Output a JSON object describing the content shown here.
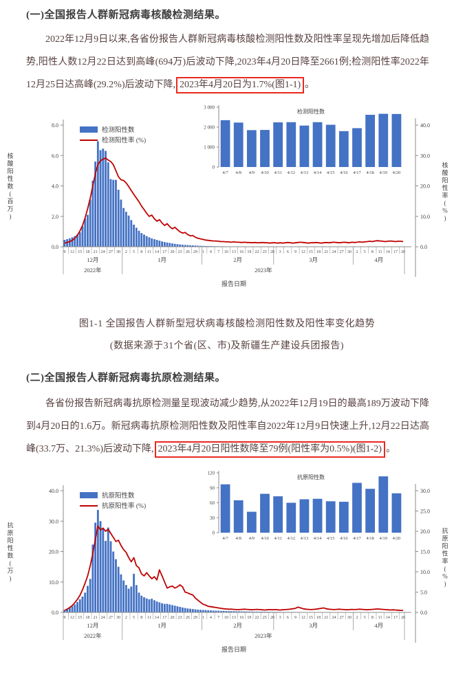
{
  "colors": {
    "bar": "#4472C4",
    "line": "#C00000",
    "axis": "#8a8a8a",
    "tick_text": "#3f3f3f",
    "highlight_border": "#e8281e"
  },
  "section1": {
    "heading": "(一)全国报告人群新冠病毒核酸检测结果。",
    "para_before": "2022年12月9日以来,各省份报告人群新冠病毒核酸检测阳性数及阳性率呈现先增加后降低趋势,阳性人数12月22日达到高峰(694万)后波动下降,2023年4月20日降至2661例;检测阳性率2022年12月25日达高峰(29.2%)后波动下降,",
    "highlight": "2023年4月20日为1.7%(图1-1)",
    "para_end": "。"
  },
  "figure1": {
    "caption": "图1-1  全国报告人群新型冠状病毒核酸检测阳性数及阳性率变化趋势",
    "source_note": "(数据来源于31个省(区、市)及新疆生产建设兵团报告)"
  },
  "section2": {
    "heading": "(二)全国报告人群新冠病毒抗原检测结果。",
    "para_before": "各省份报告新冠病毒抗原检测量呈现波动减少趋势,从2022年12月19日的最高189万波动下降到4月20日的1.6万。新冠病毒抗原检测阳性数及阳性率自2022年12月9日快速上升,12月22日达高峰(33.7万、21.3%)后波动下降,",
    "highlight": "2023年4月20日阳性数降至79例(阳性率为0.5%)(图1-2)",
    "para_end": "。"
  },
  "chart_data": [
    {
      "type": "bar+line",
      "title": "",
      "legend": [
        "检测阳性数",
        "检测阳性率 (%)"
      ],
      "ylabel_left": "核酸阳性数(百万)",
      "ylabel_right": "核酸阳性率(%)",
      "xlabel": "报告日期",
      "left_axis": {
        "max": 8,
        "labels": [
          "0.0",
          "2.0",
          "4.0",
          "6.0",
          "8.0"
        ]
      },
      "right_axis": {
        "max": 40,
        "labels": [
          "0.0",
          "10.0",
          "20.0",
          "30.0",
          "40.0"
        ]
      },
      "x_months": [
        {
          "label": "12月",
          "days": 23,
          "first_tick": 0,
          "tick_labels": [
            "9",
            "12",
            "15",
            "18",
            "21",
            "24",
            "27",
            "30"
          ]
        },
        {
          "label": "1月",
          "days": 31,
          "first_tick": 1,
          "tick_labels": [
            "2",
            "5",
            "8",
            "11",
            "14",
            "17",
            "20",
            "23",
            "26",
            "29"
          ]
        },
        {
          "label": "2月",
          "days": 28,
          "first_tick": 0,
          "tick_labels": [
            "1",
            "4",
            "7",
            "10",
            "13",
            "16",
            "19",
            "22",
            "25",
            "28"
          ]
        },
        {
          "label": "3月",
          "days": 31,
          "first_tick": 2,
          "tick_labels": [
            "3",
            "6",
            "9",
            "12",
            "15",
            "18",
            "21",
            "24",
            "27",
            "30"
          ]
        },
        {
          "label": "4月",
          "days": 20,
          "first_tick": 1,
          "tick_labels": [
            "2",
            "5",
            "8",
            "11",
            "14",
            "17",
            "20"
          ]
        }
      ],
      "years": [
        {
          "label": "2022年",
          "month_span": [
            0,
            0
          ]
        },
        {
          "label": "2023年",
          "month_span": [
            1,
            4
          ]
        }
      ],
      "series": [
        {
          "name": "检测阳性数",
          "type": "bar",
          "axis": "left",
          "values": [
            0.45,
            0.5,
            0.55,
            0.62,
            0.7,
            0.8,
            0.95,
            1.35,
            1.85,
            2.1,
            3.1,
            4.35,
            5.6,
            6.94,
            6.35,
            6.45,
            6.3,
            5.55,
            4.45,
            4.4,
            4.4,
            3.75,
            3.1,
            2.55,
            2.3,
            2.05,
            1.75,
            1.45,
            1.25,
            1.05,
            0.9,
            0.8,
            0.7,
            0.62,
            0.55,
            0.5,
            0.45,
            0.4,
            0.35,
            0.31,
            0.28,
            0.25,
            0.22,
            0.19,
            0.17,
            0.15,
            0.13,
            0.12,
            0.11,
            0.1,
            0.09,
            0.08,
            0.07,
            0.06,
            0.055,
            0.05,
            0.046,
            0.042,
            0.038,
            0.035,
            0.032,
            0.03,
            0.028,
            0.026,
            0.024,
            0.022,
            0.021,
            0.02,
            0.019,
            0.018,
            0.017,
            0.016,
            0.015,
            0.014,
            0.013,
            0.013,
            0.012,
            0.012,
            0.011,
            0.011,
            0.01,
            0.01,
            0.0095,
            0.009,
            0.009,
            0.0085,
            0.008,
            0.008,
            0.0075,
            0.007,
            0.007,
            0.0065,
            0.006,
            0.006,
            0.006,
            0.0055,
            0.0055,
            0.005,
            0.005,
            0.005,
            0.005,
            0.0045,
            0.0045,
            0.0045,
            0.004,
            0.004,
            0.004,
            0.004,
            0.0035,
            0.0035,
            0.0035,
            0.003,
            0.003,
            0.003,
            0.003,
            0.003,
            0.0028,
            0.0028,
            0.0027,
            0.0027,
            0.0026,
            0.0026,
            0.0025,
            0.0025,
            0.0024,
            0.0024,
            0.0024,
            0.0025,
            0.0025,
            0.0026,
            0.0026,
            0.0027,
            0.0027
          ]
        },
        {
          "name": "检测阳性率 (%)",
          "type": "line",
          "axis": "right",
          "values": [
            1.2,
            1.4,
            1.7,
            2.1,
            2.8,
            3.8,
            5.2,
            7.0,
            9.5,
            12.5,
            16.0,
            20.0,
            24.0,
            27.0,
            28.3,
            28.8,
            29.2,
            28.5,
            28.0,
            27.0,
            25.0,
            23.0,
            22.0,
            21.8,
            21.0,
            19.8,
            18.5,
            17.2,
            16.0,
            14.8,
            13.4,
            12.2,
            11.0,
            10.0,
            10.4,
            9.2,
            8.4,
            8.9,
            7.8,
            7.0,
            7.6,
            6.6,
            5.9,
            6.4,
            5.6,
            4.9,
            4.5,
            4.7,
            4.0,
            3.6,
            3.7,
            3.1,
            2.8,
            2.6,
            2.4,
            2.2,
            2.1,
            2.0,
            1.9,
            1.9,
            1.8,
            1.7,
            1.7,
            1.6,
            1.6,
            1.5,
            1.6,
            1.5,
            1.5,
            1.4,
            1.5,
            1.4,
            1.4,
            1.3,
            1.4,
            1.3,
            1.3,
            1.4,
            1.3,
            1.3,
            1.2,
            1.3,
            1.3,
            1.2,
            1.3,
            1.2,
            1.3,
            1.4,
            1.3,
            1.2,
            1.3,
            1.4,
            1.5,
            1.4,
            1.3,
            1.2,
            1.3,
            1.3,
            1.4,
            1.3,
            1.2,
            1.3,
            1.4,
            1.3,
            1.4,
            1.5,
            1.4,
            1.3,
            1.4,
            1.5,
            1.4,
            1.3,
            1.5,
            1.4,
            1.5,
            1.6,
            1.5,
            1.6,
            1.7,
            1.8,
            1.7,
            1.9,
            2.0,
            1.9,
            1.8,
            1.7,
            1.8,
            1.9,
            1.8,
            1.7,
            1.8,
            1.8,
            1.7
          ]
        }
      ],
      "annotations": {
        "peak_bar": "12月22日高峰694万",
        "peak_rate": "12月25日高峰29.2%",
        "last": "2023年4月20日 2661例, 1.7%"
      },
      "inset": {
        "type": "bar",
        "title": "检测阳性数",
        "categories": [
          "4/7",
          "4/8",
          "4/9",
          "4/10",
          "4/11",
          "4/12",
          "4/13",
          "4/14",
          "4/15",
          "4/16",
          "4/17",
          "4/18",
          "4/19",
          "4/20"
        ],
        "values": [
          2350,
          2230,
          1850,
          1860,
          2240,
          2250,
          2080,
          2250,
          2120,
          1800,
          1950,
          2620,
          2670,
          2661
        ],
        "ymax": 3000,
        "y_ticks": [
          {
            "value": 0,
            "label": "0"
          },
          {
            "value": 1000,
            "label": "1 000"
          },
          {
            "value": 2000,
            "label": "2 000"
          },
          {
            "value": 3000,
            "label": "3 000"
          }
        ]
      }
    },
    {
      "type": "bar+line",
      "title": "",
      "legend": [
        "抗原阳性数",
        "抗原阳性率 (%)"
      ],
      "ylabel_left": "抗原阳性数(万)",
      "ylabel_right": "抗原阳性率(%)",
      "xlabel": "报告日期",
      "left_axis": {
        "max": 40,
        "labels": [
          "0.0",
          "10.0",
          "20.0",
          "30.0",
          "40.0"
        ]
      },
      "right_axis": {
        "max": 30,
        "labels": [
          "0.0",
          "5.0",
          "10.0",
          "15.0",
          "20.0",
          "25.0",
          "30.0"
        ]
      },
      "x_months": [
        {
          "label": "12月",
          "days": 23,
          "first_tick": 0,
          "tick_labels": [
            "9",
            "12",
            "15",
            "18",
            "21",
            "24",
            "27",
            "30"
          ]
        },
        {
          "label": "1月",
          "days": 31,
          "first_tick": 1,
          "tick_labels": [
            "2",
            "5",
            "8",
            "11",
            "14",
            "17",
            "20",
            "23",
            "26",
            "29"
          ]
        },
        {
          "label": "2月",
          "days": 28,
          "first_tick": 0,
          "tick_labels": [
            "1",
            "4",
            "7",
            "10",
            "13",
            "16",
            "19",
            "22",
            "25",
            "28"
          ]
        },
        {
          "label": "3月",
          "days": 31,
          "first_tick": 2,
          "tick_labels": [
            "3",
            "6",
            "9",
            "12",
            "15",
            "18",
            "21",
            "24",
            "27",
            "30"
          ]
        },
        {
          "label": "4月",
          "days": 20,
          "first_tick": 1,
          "tick_labels": [
            "2",
            "5",
            "8",
            "11",
            "14",
            "17",
            "20"
          ]
        }
      ],
      "years": [
        {
          "label": "2022年",
          "month_span": [
            0,
            0
          ]
        },
        {
          "label": "2023年",
          "month_span": [
            1,
            4
          ]
        }
      ],
      "series": [
        {
          "name": "抗原阳性数",
          "type": "bar",
          "axis": "left",
          "values": [
            0.8,
            1.1,
            1.5,
            2.0,
            2.6,
            3.4,
            4.3,
            5.2,
            6.5,
            8.7,
            11.0,
            22.3,
            29.5,
            33.7,
            30.0,
            27.5,
            23.5,
            27.9,
            23.4,
            20.0,
            17.5,
            15.0,
            12.5,
            10.5,
            9.0,
            7.8,
            8.5,
            12.7,
            9.0,
            6.5,
            5.5,
            5.0,
            4.6,
            4.3,
            4.5,
            4.0,
            3.6,
            3.3,
            3.0,
            2.8,
            2.8,
            2.6,
            2.4,
            2.2,
            2.0,
            1.8,
            1.6,
            1.45,
            1.3,
            1.2,
            1.1,
            1.0,
            0.9,
            0.85,
            0.8,
            0.75,
            0.7,
            0.65,
            0.6,
            0.58,
            0.55,
            0.52,
            0.5,
            0.47,
            0.45,
            0.42,
            0.4,
            0.38,
            0.36,
            0.34,
            0.32,
            0.3,
            0.29,
            0.27,
            0.26,
            0.25,
            0.24,
            0.23,
            0.22,
            0.21,
            0.2,
            0.19,
            0.18,
            0.17,
            0.17,
            0.16,
            0.15,
            0.15,
            0.14,
            0.14,
            0.13,
            0.13,
            0.12,
            0.12,
            0.11,
            0.11,
            0.1,
            0.1,
            0.1,
            0.09,
            0.09,
            0.09,
            0.08,
            0.08,
            0.08,
            0.07,
            0.07,
            0.07,
            0.06,
            0.06,
            0.06,
            0.05,
            0.05,
            0.05,
            0.05,
            0.04,
            0.04,
            0.04,
            0.03,
            0.03,
            0.03,
            0.02,
            0.02,
            0.02,
            0.02,
            0.015,
            0.015,
            0.012,
            0.011,
            0.01,
            0.009,
            0.008,
            0.0079
          ]
        },
        {
          "name": "抗原阳性率 (%)",
          "type": "line",
          "axis": "right",
          "values": [
            0.5,
            0.8,
            1.2,
            1.7,
            2.4,
            3.2,
            4.2,
            5.6,
            7.2,
            9.0,
            11.5,
            14.5,
            18.0,
            21.3,
            20.3,
            20.8,
            20.0,
            20.5,
            19.5,
            18.5,
            17.5,
            17.8,
            16.5,
            15.5,
            14.8,
            13.5,
            12.5,
            13.5,
            11.5,
            11.0,
            9.5,
            9.0,
            9.8,
            9.0,
            8.3,
            8.8,
            8.0,
            10.5,
            9.0,
            7.5,
            6.0,
            6.3,
            6.5,
            6.0,
            6.3,
            6.8,
            6.3,
            5.0,
            4.8,
            4.5,
            4.3,
            3.5,
            3.0,
            2.5,
            2.0,
            1.8,
            1.5,
            1.4,
            1.3,
            1.2,
            1.1,
            1.0,
            0.9,
            0.85,
            0.8,
            0.8,
            0.75,
            0.7,
            0.7,
            0.75,
            0.8,
            0.75,
            0.7,
            0.65,
            0.7,
            0.75,
            0.7,
            0.65,
            0.6,
            0.65,
            0.7,
            0.65,
            0.7,
            0.65,
            0.6,
            0.65,
            0.7,
            0.75,
            0.8,
            0.9,
            1.0,
            1.3,
            1.1,
            0.9,
            0.8,
            0.75,
            0.7,
            0.75,
            0.8,
            0.9,
            1.0,
            1.1,
            0.9,
            0.8,
            0.75,
            0.7,
            0.75,
            0.8,
            0.75,
            0.7,
            0.65,
            0.7,
            0.75,
            0.7,
            0.75,
            0.8,
            0.75,
            0.7,
            0.65,
            0.7,
            0.75,
            0.8,
            0.85,
            0.8,
            0.75,
            0.7,
            0.65,
            0.6,
            0.65,
            0.6,
            0.55,
            0.5,
            0.5
          ]
        }
      ],
      "annotations": {
        "peak": "12月22日高峰33.7万、21.3%",
        "last": "2023年4月20日 79例, 0.5%"
      },
      "inset": {
        "type": "bar",
        "title": "抗原阳性数",
        "categories": [
          "4/7",
          "4/8",
          "4/9",
          "4/10",
          "4/11",
          "4/12",
          "4/13",
          "4/14",
          "4/15",
          "4/16",
          "4/17",
          "4/18",
          "4/19",
          "4/20"
        ],
        "values": [
          97,
          65,
          42,
          78,
          73,
          60,
          67,
          68,
          63,
          62,
          100,
          88,
          113,
          79
        ],
        "ymax": 120,
        "y_ticks": [
          {
            "value": 0,
            "label": "0"
          },
          {
            "value": 30,
            "label": "30"
          },
          {
            "value": 60,
            "label": "60"
          },
          {
            "value": 90,
            "label": "90"
          },
          {
            "value": 120,
            "label": "120"
          }
        ]
      }
    }
  ]
}
